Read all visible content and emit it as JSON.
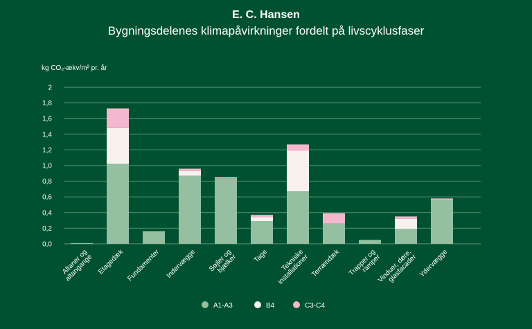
{
  "chart_data": {
    "type": "bar",
    "stacked": true,
    "title": "E. C. Hansen",
    "subtitle": "Bygningsdelenes klimapåvirkninger fordelt på livscyklusfaser",
    "ylabel": "kg CO₂-ækv/m² pr. år",
    "xlabel": "",
    "ylim": [
      0,
      2
    ],
    "yticks": [
      "0,0",
      "0,2",
      "0,4",
      "0,6",
      "0,8",
      "1,0",
      "1,2",
      "1,4",
      "1,6",
      "1,8",
      "2"
    ],
    "grid": true,
    "legend_position": "bottom",
    "categories": [
      [
        "Altaner og",
        "altangange"
      ],
      [
        "Etagedæk"
      ],
      [
        "Fundamenter"
      ],
      [
        "Indervægge"
      ],
      [
        "Søjler og",
        "bjælker"
      ],
      [
        "Tage"
      ],
      [
        "Tekniske",
        "installationer"
      ],
      [
        "Terrændæk"
      ],
      [
        "Trapper og",
        "ramper"
      ],
      [
        "Vinduer, døre,",
        "glasfacader"
      ],
      [
        "Ydervægge"
      ]
    ],
    "series": [
      {
        "name": "A1-A3",
        "color": "#94bfa1",
        "values": [
          0.01,
          1.02,
          0.16,
          0.87,
          0.84,
          0.29,
          0.67,
          0.26,
          0.05,
          0.19,
          0.56
        ]
      },
      {
        "name": "B4",
        "color": "#f7f2ee",
        "values": [
          0,
          0.46,
          0,
          0.06,
          0,
          0.05,
          0.52,
          0,
          0,
          0.13,
          0
        ]
      },
      {
        "name": "C3-C4",
        "color": "#f4b8ce",
        "values": [
          0,
          0.25,
          0,
          0.03,
          0.01,
          0.03,
          0.08,
          0.13,
          0,
          0.03,
          0.02
        ]
      }
    ]
  }
}
